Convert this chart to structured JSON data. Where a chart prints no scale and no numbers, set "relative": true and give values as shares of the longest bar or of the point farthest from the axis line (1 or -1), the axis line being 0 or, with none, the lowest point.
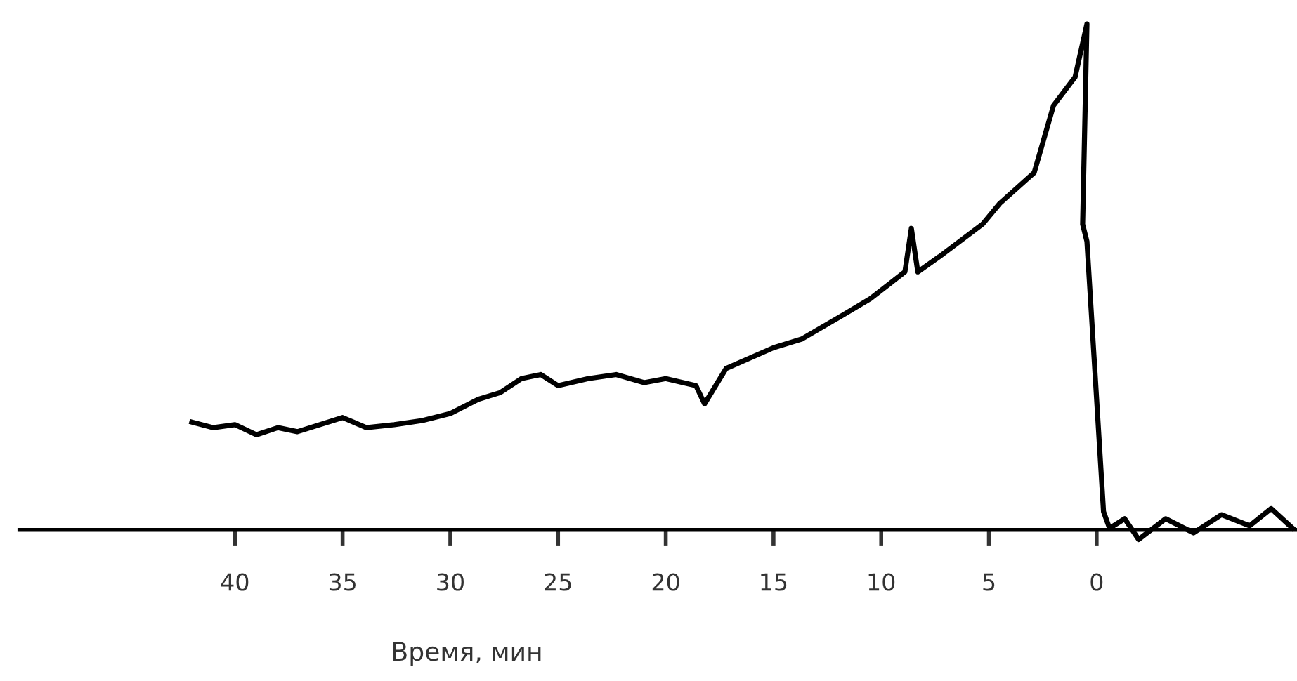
{
  "chart_data": {
    "type": "line",
    "relative": true,
    "xlabel": "Время, мин",
    "xlim": [
      50,
      -9.3
    ],
    "xticks": [
      40,
      35,
      30,
      25,
      20,
      15,
      10,
      5,
      0
    ],
    "grid": false,
    "legend": false,
    "marker": "none",
    "line_style": "solid",
    "series": [
      {
        "color": "#000000",
        "x": [
          42.0,
          41.0,
          40.0,
          39.0,
          38.0,
          37.1,
          35.0,
          33.9,
          32.6,
          31.3,
          30.0,
          28.7,
          27.7,
          26.7,
          25.8,
          25.0,
          23.6,
          22.3,
          21.0,
          20.0,
          18.6,
          18.2,
          17.2,
          15.0,
          13.7,
          11.8,
          10.5,
          8.9,
          8.6,
          8.3,
          7.3,
          5.3,
          4.5,
          2.9,
          2.0,
          1.0,
          0.45,
          0.65,
          0.45,
          -0.32,
          -0.6,
          -1.3,
          -1.95,
          -3.2,
          -4.5,
          -5.8,
          -7.1,
          -8.1,
          -9.1
        ],
        "values": [
          0.213,
          0.202,
          0.208,
          0.188,
          0.202,
          0.194,
          0.222,
          0.202,
          0.208,
          0.216,
          0.23,
          0.258,
          0.271,
          0.299,
          0.307,
          0.285,
          0.299,
          0.307,
          0.291,
          0.299,
          0.285,
          0.249,
          0.319,
          0.36,
          0.377,
          0.424,
          0.457,
          0.51,
          0.596,
          0.51,
          0.54,
          0.604,
          0.645,
          0.706,
          0.839,
          0.895,
          1.0,
          0.604,
          0.57,
          0.036,
          0.003,
          0.022,
          -0.019,
          0.022,
          -0.006,
          0.03,
          0.008,
          0.042,
          0.003
        ]
      }
    ]
  }
}
